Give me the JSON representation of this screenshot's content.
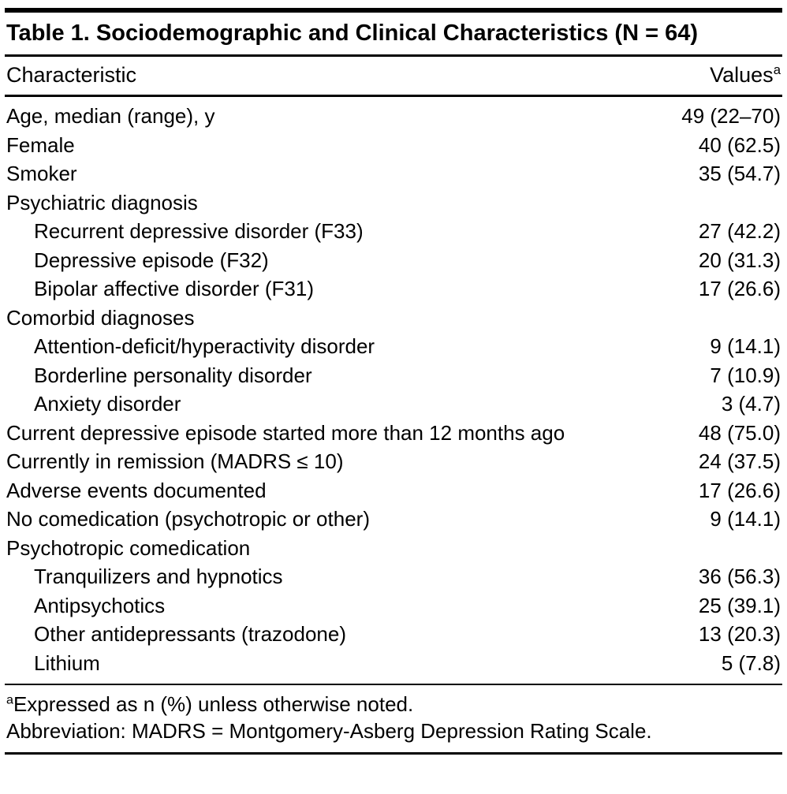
{
  "title": "Table 1. Sociodemographic and Clinical Characteristics (N = 64)",
  "table": {
    "columns": [
      "Characteristic",
      "Values"
    ],
    "values_superscript": "a",
    "rows": [
      {
        "label": "Age, median (range), y",
        "value": "49 (22–70)",
        "indent": false
      },
      {
        "label": "Female",
        "value": "40 (62.5)",
        "indent": false
      },
      {
        "label": "Smoker",
        "value": "35 (54.7)",
        "indent": false
      },
      {
        "label": "Psychiatric diagnosis",
        "value": "",
        "indent": false
      },
      {
        "label": "Recurrent depressive disorder (F33)",
        "value": "27 (42.2)",
        "indent": true
      },
      {
        "label": "Depressive episode (F32)",
        "value": "20 (31.3)",
        "indent": true
      },
      {
        "label": "Bipolar affective disorder (F31)",
        "value": "17 (26.6)",
        "indent": true
      },
      {
        "label": "Comorbid diagnoses",
        "value": "",
        "indent": false
      },
      {
        "label": "Attention-deficit/hyperactivity disorder",
        "value": "9 (14.1)",
        "indent": true
      },
      {
        "label": "Borderline personality disorder",
        "value": "7 (10.9)",
        "indent": true
      },
      {
        "label": "Anxiety disorder",
        "value": "3 (4.7)",
        "indent": true
      },
      {
        "label": "Current depressive episode started more than 12 months ago",
        "value": "48 (75.0)",
        "indent": false
      },
      {
        "label": "Currently in remission (MADRS ≤ 10)",
        "value": "24 (37.5)",
        "indent": false
      },
      {
        "label": "Adverse events documented",
        "value": "17 (26.6)",
        "indent": false
      },
      {
        "label": "No comedication (psychotropic or other)",
        "value": "9 (14.1)",
        "indent": false
      },
      {
        "label": "Psychotropic comedication",
        "value": "",
        "indent": false
      },
      {
        "label": "Tranquilizers and hypnotics",
        "value": "36 (56.3)",
        "indent": true
      },
      {
        "label": "Antipsychotics",
        "value": "25 (39.1)",
        "indent": true
      },
      {
        "label": "Other antidepressants (trazodone)",
        "value": "13 (20.3)",
        "indent": true
      },
      {
        "label": "Lithium",
        "value": "5 (7.8)",
        "indent": true
      }
    ]
  },
  "footnotes": [
    {
      "superscript": "a",
      "text": "Expressed as n (%) unless otherwise noted."
    },
    {
      "superscript": "",
      "text": "Abbreviation: MADRS = Montgomery-Asberg Depression Rating Scale."
    }
  ],
  "colors": {
    "text": "#000000",
    "background": "#ffffff",
    "rule": "#000000"
  }
}
